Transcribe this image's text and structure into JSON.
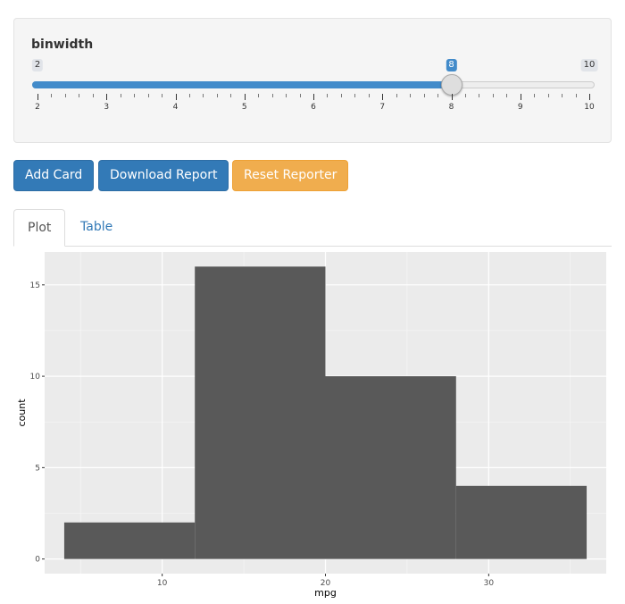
{
  "slider": {
    "label": "binwidth",
    "min": 2,
    "max": 10,
    "value": 8,
    "min_label": "2",
    "max_label": "10",
    "value_label": "8",
    "grid_labels": [
      "2",
      "3",
      "4",
      "5",
      "6",
      "7",
      "8",
      "9",
      "10"
    ],
    "accent_color": "#428bca"
  },
  "buttons": {
    "add_card": "Add Card",
    "download_report": "Download Report",
    "reset_reporter": "Reset Reporter"
  },
  "tabs": [
    {
      "label": "Plot",
      "active": true
    },
    {
      "label": "Table",
      "active": false
    }
  ],
  "chart_data": {
    "type": "bar",
    "title": "",
    "xlabel": "mpg",
    "ylabel": "count",
    "bar_color": "#595959",
    "panel_color": "#ebebeb",
    "grid": true,
    "xlim": [
      2.8,
      37.2
    ],
    "ylim": [
      -0.8,
      16.8
    ],
    "x_ticks": [
      10,
      20,
      30
    ],
    "y_ticks": [
      0,
      5,
      10,
      15
    ],
    "bins": [
      {
        "x0": 4,
        "x1": 12,
        "count": 2
      },
      {
        "x0": 12,
        "x1": 20,
        "count": 16
      },
      {
        "x0": 20,
        "x1": 28,
        "count": 10
      },
      {
        "x0": 28,
        "x1": 36,
        "count": 4
      }
    ]
  }
}
